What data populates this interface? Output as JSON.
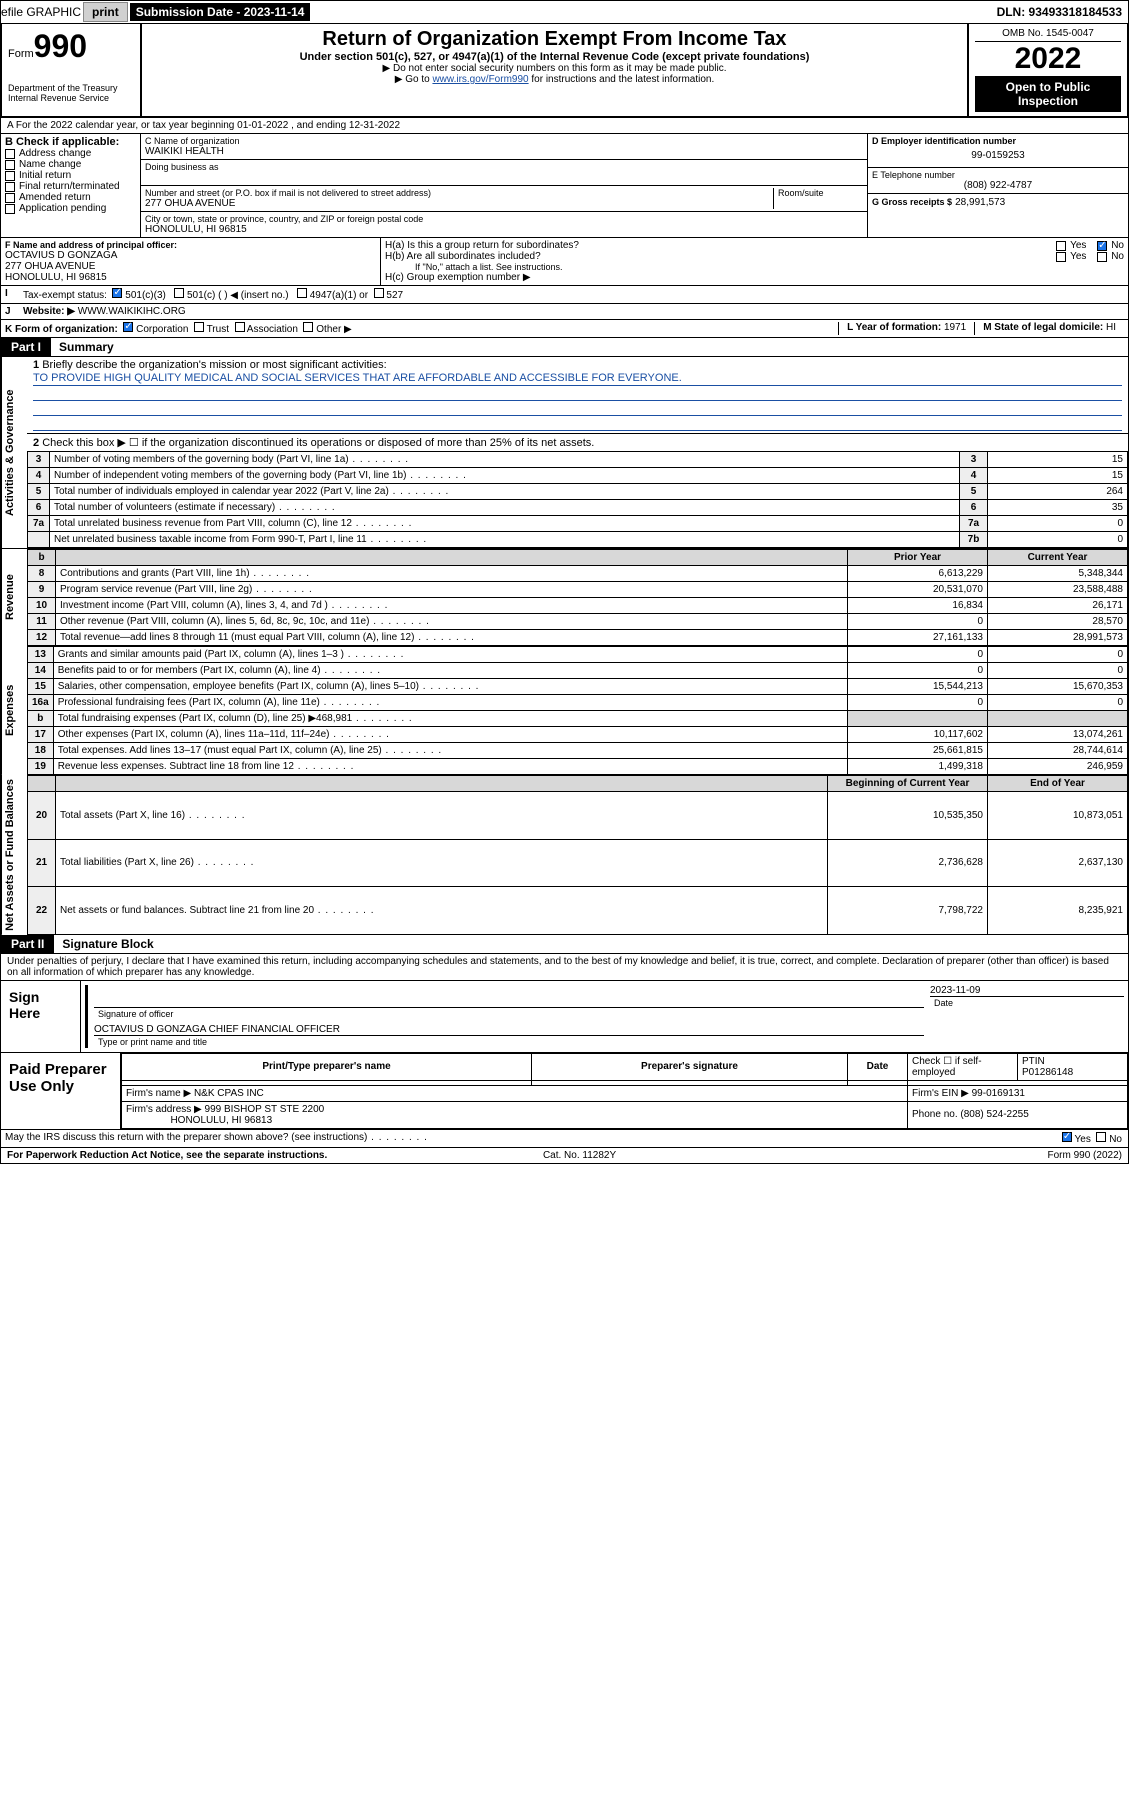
{
  "topbar": {
    "efile": "efile GRAPHIC",
    "print": "print",
    "sub_label": "Submission Date - 2023-11-14",
    "dln": "DLN: 93493318184533"
  },
  "header": {
    "form_word": "Form",
    "form_no": "990",
    "title": "Return of Organization Exempt From Income Tax",
    "sub1": "Under section 501(c), 527, or 4947(a)(1) of the Internal Revenue Code (except private foundations)",
    "sub2": "▶ Do not enter social security numbers on this form as it may be made public.",
    "sub3_pre": "▶ Go to ",
    "sub3_link": "www.irs.gov/Form990",
    "sub3_post": " for instructions and the latest information.",
    "dept": "Department of the Treasury",
    "irs": "Internal Revenue Service",
    "omb": "OMB No. 1545-0047",
    "year": "2022",
    "open_pub": "Open to Public Inspection"
  },
  "rowA": {
    "text": "A For the 2022 calendar year, or tax year beginning 01-01-2022   , and ending 12-31-2022"
  },
  "boxB": {
    "title": "B Check if applicable:",
    "items": [
      "Address change",
      "Name change",
      "Initial return",
      "Final return/terminated",
      "Amended return",
      "Application pending"
    ]
  },
  "boxC": {
    "name_lbl": "C Name of organization",
    "name": "WAIKIKI HEALTH",
    "dba_lbl": "Doing business as",
    "street_lbl": "Number and street (or P.O. box if mail is not delivered to street address)",
    "room_lbl": "Room/suite",
    "street": "277 OHUA AVENUE",
    "city_lbl": "City or town, state or province, country, and ZIP or foreign postal code",
    "city": "HONOLULU, HI  96815"
  },
  "boxD": {
    "lbl": "D Employer identification number",
    "val": "99-0159253"
  },
  "boxE": {
    "lbl": "E Telephone number",
    "val": "(808) 922-4787"
  },
  "boxG": {
    "lbl": "G Gross receipts $",
    "val": "28,991,573"
  },
  "boxF": {
    "lbl": "F Name and address of principal officer:",
    "name": "OCTAVIUS D GONZAGA",
    "addr1": "277 OHUA AVENUE",
    "addr2": "HONOLULU, HI  96815"
  },
  "boxH": {
    "ha": "H(a)  Is this a group return for subordinates?",
    "hb": "H(b)  Are all subordinates included?",
    "hb_note": "If \"No,\" attach a list. See instructions.",
    "hc": "H(c)  Group exemption number ▶",
    "yes": "Yes",
    "no": "No"
  },
  "rowI": {
    "lbl": "Tax-exempt status:",
    "c1": "501(c)(3)",
    "c2": "501(c) (  ) ◀ (insert no.)",
    "c3": "4947(a)(1) or",
    "c4": "527"
  },
  "rowJ": {
    "lbl": "Website: ▶",
    "val": "WWW.WAIKIKIHC.ORG"
  },
  "rowK": {
    "lbl": "K Form of organization:",
    "opts": [
      "Corporation",
      "Trust",
      "Association",
      "Other ▶"
    ]
  },
  "rowL": {
    "lbl": "L Year of formation:",
    "val": "1971"
  },
  "rowM": {
    "lbl": "M State of legal domicile:",
    "val": "HI"
  },
  "part1": {
    "lbl": "Part I",
    "title": "Summary"
  },
  "summary": {
    "q1": "Briefly describe the organization's mission or most significant activities:",
    "mission": "TO PROVIDE HIGH QUALITY MEDICAL AND SOCIAL SERVICES THAT ARE AFFORDABLE AND ACCESSIBLE FOR EVERYONE.",
    "q2": "Check this box ▶ ☐  if the organization discontinued its operations or disposed of more than 25% of its net assets.",
    "lines_ag": [
      {
        "n": "3",
        "t": "Number of voting members of the governing body (Part VI, line 1a)",
        "box": "3",
        "v": "15"
      },
      {
        "n": "4",
        "t": "Number of independent voting members of the governing body (Part VI, line 1b)",
        "box": "4",
        "v": "15"
      },
      {
        "n": "5",
        "t": "Total number of individuals employed in calendar year 2022 (Part V, line 2a)",
        "box": "5",
        "v": "264"
      },
      {
        "n": "6",
        "t": "Total number of volunteers (estimate if necessary)",
        "box": "6",
        "v": "35"
      },
      {
        "n": "7a",
        "t": "Total unrelated business revenue from Part VIII, column (C), line 12",
        "box": "7a",
        "v": "0"
      },
      {
        "n": "",
        "t": "Net unrelated business taxable income from Form 990-T, Part I, line 11",
        "box": "7b",
        "v": "0"
      }
    ],
    "col_prior": "Prior Year",
    "col_curr": "Current Year",
    "revenue": [
      {
        "n": "8",
        "t": "Contributions and grants (Part VIII, line 1h)",
        "p": "6,613,229",
        "c": "5,348,344"
      },
      {
        "n": "9",
        "t": "Program service revenue (Part VIII, line 2g)",
        "p": "20,531,070",
        "c": "23,588,488"
      },
      {
        "n": "10",
        "t": "Investment income (Part VIII, column (A), lines 3, 4, and 7d )",
        "p": "16,834",
        "c": "26,171"
      },
      {
        "n": "11",
        "t": "Other revenue (Part VIII, column (A), lines 5, 6d, 8c, 9c, 10c, and 11e)",
        "p": "0",
        "c": "28,570"
      },
      {
        "n": "12",
        "t": "Total revenue—add lines 8 through 11 (must equal Part VIII, column (A), line 12)",
        "p": "27,161,133",
        "c": "28,991,573"
      }
    ],
    "expenses": [
      {
        "n": "13",
        "t": "Grants and similar amounts paid (Part IX, column (A), lines 1–3 )",
        "p": "0",
        "c": "0"
      },
      {
        "n": "14",
        "t": "Benefits paid to or for members (Part IX, column (A), line 4)",
        "p": "0",
        "c": "0"
      },
      {
        "n": "15",
        "t": "Salaries, other compensation, employee benefits (Part IX, column (A), lines 5–10)",
        "p": "15,544,213",
        "c": "15,670,353"
      },
      {
        "n": "16a",
        "t": "Professional fundraising fees (Part IX, column (A), line 11e)",
        "p": "0",
        "c": "0"
      },
      {
        "n": "b",
        "t": "Total fundraising expenses (Part IX, column (D), line 25) ▶468,981",
        "p": "",
        "c": "",
        "gray": true
      },
      {
        "n": "17",
        "t": "Other expenses (Part IX, column (A), lines 11a–11d, 11f–24e)",
        "p": "10,117,602",
        "c": "13,074,261"
      },
      {
        "n": "18",
        "t": "Total expenses. Add lines 13–17 (must equal Part IX, column (A), line 25)",
        "p": "25,661,815",
        "c": "28,744,614"
      },
      {
        "n": "19",
        "t": "Revenue less expenses. Subtract line 18 from line 12",
        "p": "1,499,318",
        "c": "246,959"
      }
    ],
    "col_boy": "Beginning of Current Year",
    "col_eoy": "End of Year",
    "netassets": [
      {
        "n": "20",
        "t": "Total assets (Part X, line 16)",
        "p": "10,535,350",
        "c": "10,873,051"
      },
      {
        "n": "21",
        "t": "Total liabilities (Part X, line 26)",
        "p": "2,736,628",
        "c": "2,637,130"
      },
      {
        "n": "22",
        "t": "Net assets or fund balances. Subtract line 21 from line 20",
        "p": "7,798,722",
        "c": "8,235,921"
      }
    ]
  },
  "labels": {
    "ag": "Activities & Governance",
    "rev": "Revenue",
    "exp": "Expenses",
    "na": "Net Assets or Fund Balances"
  },
  "part2": {
    "lbl": "Part II",
    "title": "Signature Block",
    "decl": "Under penalties of perjury, I declare that I have examined this return, including accompanying schedules and statements, and to the best of my knowledge and belief, it is true, correct, and complete. Declaration of preparer (other than officer) is based on all information of which preparer has any knowledge."
  },
  "sign": {
    "here": "Sign Here",
    "sig_lbl": "Signature of officer",
    "date_lbl": "Date",
    "date": "2023-11-09",
    "name": "OCTAVIUS D GONZAGA  CHIEF FINANCIAL OFFICER",
    "name_lbl": "Type or print name and title"
  },
  "prep": {
    "title": "Paid Preparer Use Only",
    "h1": "Print/Type preparer's name",
    "h2": "Preparer's signature",
    "h3": "Date",
    "h4": "Check ☐ if self-employed",
    "ptin_lbl": "PTIN",
    "ptin": "P01286148",
    "firm_lbl": "Firm's name   ▶",
    "firm": "N&K CPAS INC",
    "ein_lbl": "Firm's EIN ▶",
    "ein": "99-0169131",
    "addr_lbl": "Firm's address ▶",
    "addr": "999 BISHOP ST STE 2200",
    "addr2": "HONOLULU, HI  96813",
    "phone_lbl": "Phone no.",
    "phone": "(808) 524-2255"
  },
  "footer": {
    "q": "May the IRS discuss this return with the preparer shown above? (see instructions)",
    "yes": "Yes",
    "no": "No",
    "pra": "For Paperwork Reduction Act Notice, see the separate instructions.",
    "cat": "Cat. No. 11282Y",
    "form": "Form 990 (2022)"
  }
}
